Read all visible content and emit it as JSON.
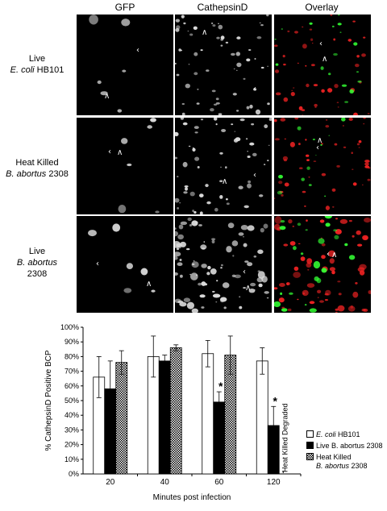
{
  "figure": {
    "column_headers": [
      "GFP",
      "CathepsinD",
      "Overlay"
    ],
    "rows": [
      {
        "line1": "Live",
        "line2_italic": "E. coli",
        "line2_rest": " HB101",
        "line3_italic": "",
        "line3_rest": ""
      },
      {
        "line1": "Heat Killed",
        "line2_italic": "B. abortus",
        "line2_rest": " 2308",
        "line3_italic": "",
        "line3_rest": ""
      },
      {
        "line1": "Live",
        "line2_italic": "B. abortus",
        "line2_rest": "",
        "line3_italic": "",
        "line3_rest": "2308"
      }
    ]
  },
  "chart_data": {
    "type": "bar",
    "ylabel": "% CathepsinD Positive BCP",
    "xlabel": "Minutes post infection",
    "categories": [
      "20",
      "40",
      "60",
      "120"
    ],
    "ylim": [
      0,
      100
    ],
    "yticks": [
      "0%",
      "10%",
      "20%",
      "30%",
      "40%",
      "50%",
      "60%",
      "70%",
      "80%",
      "90%",
      "100%"
    ],
    "series": [
      {
        "name": "E. coli HB101",
        "values": [
          66,
          80,
          82,
          77
        ],
        "errors": [
          14,
          14,
          9,
          9
        ]
      },
      {
        "name": "Live B. abortus 2308",
        "values": [
          58,
          77,
          49,
          33
        ],
        "errors": [
          19,
          4,
          7,
          13
        ]
      },
      {
        "name": "Heat Killed B. abortus 2308",
        "values": [
          76,
          86,
          81,
          null
        ],
        "errors": [
          8,
          2,
          13,
          null
        ]
      }
    ],
    "significance": [
      {
        "category": "60",
        "series": 1,
        "mark": "*"
      },
      {
        "category": "120",
        "series": 1,
        "mark": "*"
      }
    ],
    "annotation": "Heat Killed Degraded",
    "colors": {
      "ecoli": "#ffffff",
      "live": "#000000",
      "heat": "#888888"
    }
  },
  "legend": {
    "ecoli_italic": "E. coli",
    "ecoli_rest": " HB101",
    "live": "Live B. abortus 2308",
    "heat_line1": "Heat Killed",
    "heat_line2_italic": "B. abortus",
    "heat_line2_rest": " 2308"
  }
}
